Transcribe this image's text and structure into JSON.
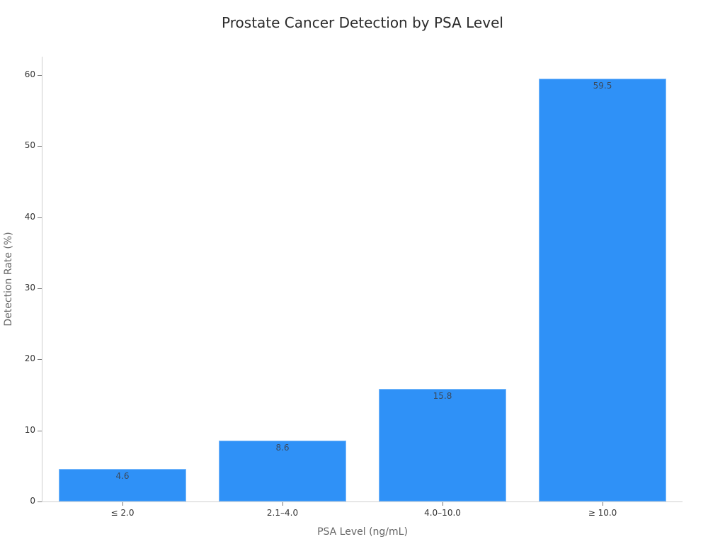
{
  "chart_data": {
    "type": "bar",
    "title": "Prostate Cancer Detection by PSA Level",
    "xlabel": "PSA Level (ng/mL)",
    "ylabel": "Detection Rate (%)",
    "categories": [
      "≤ 2.0",
      "2.1–4.0",
      "4.0–10.0",
      "≥ 10.0"
    ],
    "values": [
      4.6,
      8.6,
      15.8,
      59.5
    ],
    "value_labels": [
      "4.6",
      "8.6",
      "15.8",
      "59.5"
    ],
    "ylim": [
      0,
      62.6
    ],
    "yticks": [
      0,
      10,
      20,
      30,
      40,
      50,
      60
    ],
    "ytick_labels": [
      "0",
      "10",
      "20",
      "30",
      "40",
      "50",
      "60"
    ],
    "grid": false,
    "legend": null,
    "bar_color": "#2f91f7"
  }
}
